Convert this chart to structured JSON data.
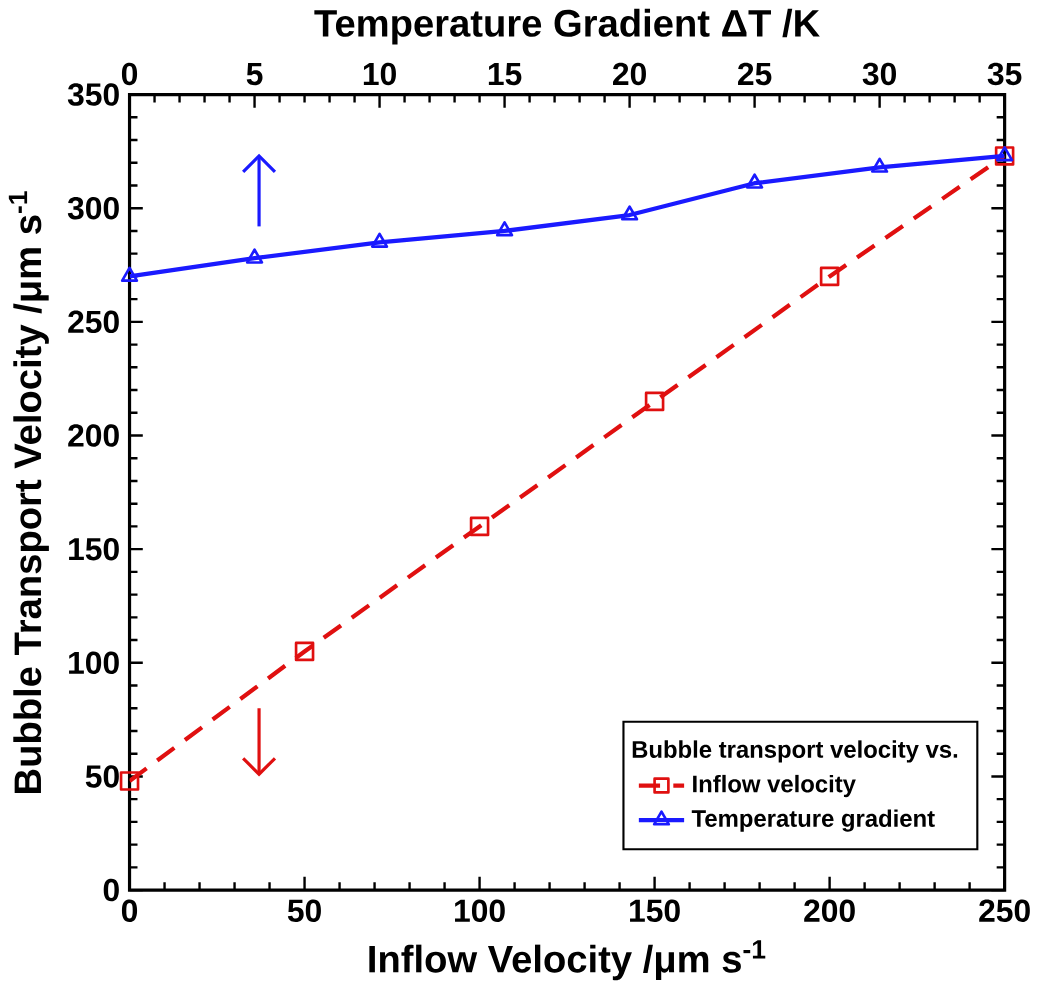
{
  "chart_data": {
    "type": "line",
    "xlabel": "Inflow Velocity /μm s$^{-1}$",
    "ylabel": "Bubble Transport Velocity /μm s$^{-1}$",
    "x2label": "Temperature Gradient ΔT /K",
    "xlim": [
      0,
      250
    ],
    "xticks": [
      0,
      50,
      100,
      150,
      200,
      250
    ],
    "x2lim": [
      0,
      35
    ],
    "x2ticks": [
      0,
      5,
      10,
      15,
      20,
      25,
      30,
      35
    ],
    "ylim": [
      0,
      350
    ],
    "yticks": [
      0,
      50,
      100,
      150,
      200,
      250,
      300,
      350
    ],
    "legend": "bottom right",
    "legend_title": "Bubble transport velocity vs.",
    "grid": false,
    "series": [
      {
        "name": "Inflow velocity",
        "color": "#e01010",
        "marker": "square",
        "line_style": "dashed",
        "x": [
          0,
          50,
          100,
          150,
          200,
          250
        ],
        "values": [
          48,
          105,
          160,
          215,
          270,
          323
        ]
      },
      {
        "name": "Temperature gradient",
        "color": "#1a1aff",
        "marker": "triangle",
        "line_style": "solid",
        "axis": "x2",
        "x": [
          0,
          5,
          10,
          15,
          20,
          25,
          30,
          35
        ],
        "values": [
          270,
          278,
          285,
          290,
          297,
          311,
          318,
          323
        ]
      }
    ]
  }
}
